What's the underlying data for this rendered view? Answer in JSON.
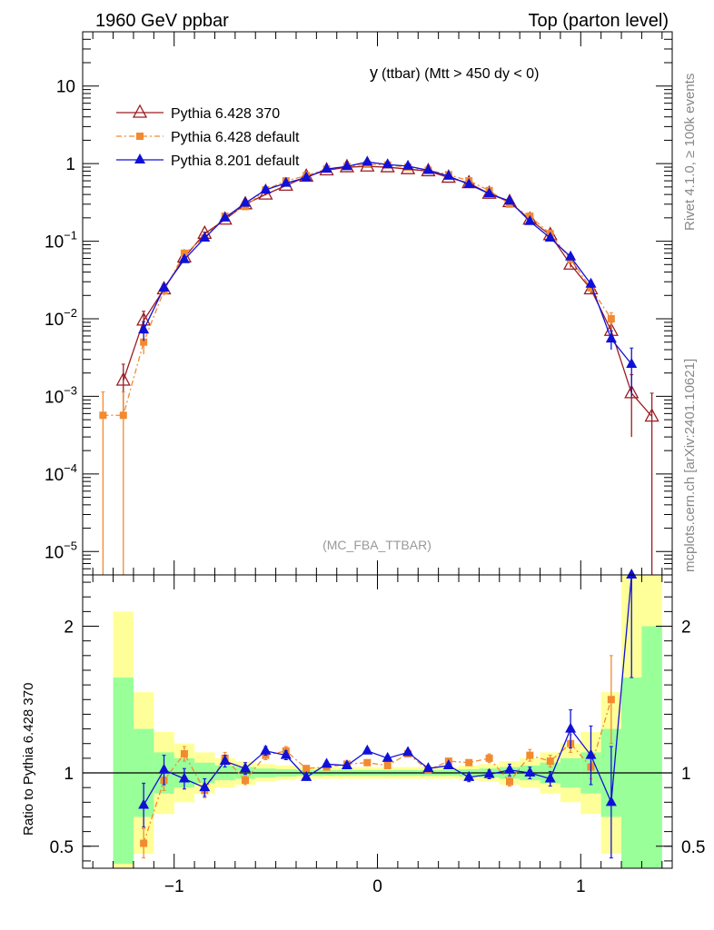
{
  "header": {
    "left": "1960 GeV ppbar",
    "right": "Top (parton level)"
  },
  "side_labels": {
    "rivet": "Rivet 4.1.0, ≥ 100k events",
    "mcplots": "mcplots.cern.ch [arXiv:2401.10621]"
  },
  "chart_data": {
    "type": "line",
    "title_main": "y",
    "title_rest": "(ttbar) (Mtt > 450 dy < 0)",
    "watermark": "(MC_FBA_TTBAR)",
    "xlim": [
      -1.45,
      1.45
    ],
    "ylim": [
      5e-06,
      50
    ],
    "yscale": "log",
    "xticks": [
      {
        "v": -1,
        "label": "−1"
      },
      {
        "v": 0,
        "label": "0"
      },
      {
        "v": 1,
        "label": "1"
      }
    ],
    "yticks": [
      {
        "v": 10,
        "base": "10",
        "exp": ""
      },
      {
        "v": 1,
        "base": "1",
        "exp": ""
      },
      {
        "v": 0.1,
        "base": "10",
        "exp": "−1"
      },
      {
        "v": 0.01,
        "base": "10",
        "exp": "−2"
      },
      {
        "v": 0.001,
        "base": "10",
        "exp": "−3"
      },
      {
        "v": 0.0001,
        "base": "10",
        "exp": "−4"
      },
      {
        "v": 1e-05,
        "base": "10",
        "exp": "−5"
      }
    ],
    "series": [
      {
        "name": "Pythia 6.428 370",
        "color": "#9b1c22",
        "marker": "triangle-open",
        "dash": "",
        "x": [
          -1.25,
          -1.15,
          -1.05,
          -0.95,
          -0.85,
          -0.75,
          -0.65,
          -0.55,
          -0.45,
          -0.35,
          -0.25,
          -0.15,
          -0.05,
          0.05,
          0.15,
          0.25,
          0.35,
          0.45,
          0.55,
          0.65,
          0.75,
          0.85,
          0.95,
          1.05,
          1.15,
          1.25,
          1.35
        ],
        "y": [
          0.0016,
          0.0095,
          0.024,
          0.062,
          0.125,
          0.19,
          0.3,
          0.4,
          0.52,
          0.68,
          0.82,
          0.9,
          0.92,
          0.9,
          0.85,
          0.8,
          0.66,
          0.56,
          0.41,
          0.32,
          0.19,
          0.12,
          0.05,
          0.024,
          0.007,
          0.0011,
          0.00055
        ],
        "err": [
          0.001,
          0.003,
          0.003,
          0.004,
          0.006,
          0.008,
          0.01,
          0.01,
          0.01,
          0.012,
          0.012,
          0.012,
          0.012,
          0.012,
          0.012,
          0.012,
          0.012,
          0.01,
          0.01,
          0.01,
          0.008,
          0.006,
          0.004,
          0.003,
          0.002,
          0.0008,
          0.00055
        ]
      },
      {
        "name": "Pythia 6.428 default",
        "color": "#f28a30",
        "marker": "square",
        "dash": "6,3,2,3",
        "x": [
          -1.35,
          -1.25,
          -1.15,
          -1.05,
          -0.95,
          -0.85,
          -0.75,
          -0.65,
          -0.55,
          -0.45,
          -0.35,
          -0.25,
          -0.15,
          -0.05,
          0.05,
          0.15,
          0.25,
          0.35,
          0.45,
          0.55,
          0.65,
          0.75,
          0.85,
          0.95,
          1.05,
          1.15
        ],
        "y": [
          0.00057,
          0.00057,
          0.005,
          0.023,
          0.07,
          0.11,
          0.21,
          0.28,
          0.46,
          0.6,
          0.7,
          0.85,
          0.92,
          0.98,
          0.96,
          0.9,
          0.82,
          0.72,
          0.6,
          0.45,
          0.3,
          0.21,
          0.125,
          0.058,
          0.025,
          0.01
        ],
        "err": [
          0.00057,
          0.00057,
          0.0015,
          0.003,
          0.004,
          0.006,
          0.008,
          0.01,
          0.01,
          0.01,
          0.012,
          0.012,
          0.012,
          0.012,
          0.012,
          0.012,
          0.012,
          0.012,
          0.01,
          0.01,
          0.01,
          0.008,
          0.006,
          0.004,
          0.003,
          0.002
        ]
      },
      {
        "name": "Pythia 8.201 default",
        "color": "#1010d8",
        "marker": "triangle",
        "dash": "",
        "x": [
          -1.15,
          -1.05,
          -0.95,
          -0.85,
          -0.75,
          -0.65,
          -0.55,
          -0.45,
          -0.35,
          -0.25,
          -0.15,
          -0.05,
          0.05,
          0.15,
          0.25,
          0.35,
          0.45,
          0.55,
          0.65,
          0.75,
          0.85,
          0.95,
          1.05,
          1.15,
          1.25
        ],
        "y": [
          0.0072,
          0.025,
          0.058,
          0.11,
          0.2,
          0.31,
          0.46,
          0.56,
          0.66,
          0.85,
          0.92,
          1.05,
          0.97,
          0.93,
          0.82,
          0.69,
          0.54,
          0.41,
          0.33,
          0.18,
          0.11,
          0.063,
          0.028,
          0.0055,
          0.0026
        ],
        "err": [
          0.002,
          0.003,
          0.004,
          0.006,
          0.008,
          0.01,
          0.01,
          0.01,
          0.012,
          0.012,
          0.012,
          0.012,
          0.012,
          0.012,
          0.012,
          0.012,
          0.01,
          0.01,
          0.01,
          0.008,
          0.006,
          0.004,
          0.003,
          0.0015,
          0.0016
        ]
      }
    ],
    "ratio": {
      "ylabel": "Ratio to Pythia 6.428 370",
      "ylim": [
        0.35,
        2.35
      ],
      "yticks": [
        {
          "v": 0.5,
          "label": "0.5"
        },
        {
          "v": 1,
          "label": "1"
        },
        {
          "v": 2,
          "label": "2"
        }
      ],
      "bands": {
        "x_lo": [
          -1.3,
          -1.2,
          -1.1,
          -1.0,
          -0.9,
          -0.8,
          -0.7,
          -0.6,
          -0.5,
          -0.4,
          -0.3,
          -0.2,
          -0.1,
          0.0,
          0.1,
          0.2,
          0.3,
          0.4,
          0.5,
          0.6,
          0.7,
          0.8,
          0.9,
          1.0,
          1.1,
          1.2,
          1.3
        ],
        "x_hi": [
          -1.2,
          -1.1,
          -1.0,
          -0.9,
          -0.8,
          -0.7,
          -0.6,
          -0.5,
          -0.4,
          -0.3,
          -0.2,
          -0.1,
          0.0,
          0.1,
          0.2,
          0.3,
          0.4,
          0.5,
          0.6,
          0.7,
          0.8,
          0.9,
          1.0,
          1.1,
          1.2,
          1.3,
          1.4
        ],
        "green_lo": [
          0.38,
          0.7,
          0.86,
          0.9,
          0.93,
          0.95,
          0.96,
          0.97,
          0.975,
          0.98,
          0.98,
          0.98,
          0.98,
          0.98,
          0.98,
          0.98,
          0.98,
          0.975,
          0.97,
          0.96,
          0.95,
          0.93,
          0.9,
          0.86,
          0.7,
          0.35,
          0.35
        ],
        "green_hi": [
          1.65,
          1.3,
          1.14,
          1.1,
          1.07,
          1.05,
          1.04,
          1.03,
          1.025,
          1.02,
          1.02,
          1.02,
          1.02,
          1.02,
          1.02,
          1.02,
          1.02,
          1.025,
          1.03,
          1.04,
          1.05,
          1.07,
          1.1,
          1.14,
          1.3,
          1.65,
          2.0
        ],
        "yellow_lo": [
          0.35,
          0.45,
          0.72,
          0.8,
          0.86,
          0.9,
          0.92,
          0.94,
          0.95,
          0.96,
          0.96,
          0.96,
          0.96,
          0.96,
          0.96,
          0.96,
          0.96,
          0.95,
          0.94,
          0.92,
          0.9,
          0.86,
          0.8,
          0.72,
          0.45,
          0.35,
          0.35
        ],
        "yellow_hi": [
          2.1,
          1.55,
          1.28,
          1.2,
          1.14,
          1.1,
          1.08,
          1.06,
          1.05,
          1.04,
          1.04,
          1.04,
          1.04,
          1.04,
          1.04,
          1.04,
          1.04,
          1.05,
          1.06,
          1.08,
          1.1,
          1.14,
          1.2,
          1.28,
          1.55,
          2.35,
          2.35
        ]
      },
      "series": [
        {
          "name": "Pythia 6.428 default",
          "x": [
            -1.15,
            -1.05,
            -0.95,
            -0.85,
            -0.75,
            -0.65,
            -0.55,
            -0.45,
            -0.35,
            -0.25,
            -0.15,
            -0.05,
            0.05,
            0.15,
            0.25,
            0.35,
            0.45,
            0.55,
            0.65,
            0.75,
            0.85,
            0.95,
            1.05,
            1.15
          ],
          "y": [
            0.52,
            0.95,
            1.13,
            0.88,
            1.1,
            0.95,
            1.12,
            1.15,
            1.03,
            1.04,
            1.06,
            1.07,
            1.05,
            1.13,
            1.02,
            1.08,
            1.07,
            1.1,
            0.94,
            1.12,
            1.08,
            1.2,
            1.04,
            1.5
          ],
          "err": [
            0.1,
            0.07,
            0.05,
            0.05,
            0.04,
            0.03,
            0.03,
            0.03,
            0.02,
            0.02,
            0.02,
            0.02,
            0.02,
            0.02,
            0.02,
            0.02,
            0.02,
            0.03,
            0.03,
            0.04,
            0.04,
            0.06,
            0.08,
            0.3
          ]
        },
        {
          "name": "Pythia 8.201 default",
          "x": [
            -1.15,
            -1.05,
            -0.95,
            -0.85,
            -0.75,
            -0.65,
            -0.55,
            -0.45,
            -0.35,
            -0.25,
            -0.15,
            -0.05,
            0.05,
            0.15,
            0.25,
            0.35,
            0.45,
            0.55,
            0.65,
            0.75,
            0.85,
            0.95,
            1.05,
            1.15,
            1.25
          ],
          "y": [
            0.78,
            1.02,
            0.96,
            0.9,
            1.08,
            1.03,
            1.15,
            1.12,
            0.97,
            1.06,
            1.05,
            1.15,
            1.1,
            1.14,
            1.03,
            1.05,
            0.97,
            0.99,
            1.02,
            1.0,
            0.96,
            1.3,
            1.12,
            0.8,
            2.35
          ],
          "err": [
            0.15,
            0.1,
            0.07,
            0.06,
            0.04,
            0.04,
            0.03,
            0.03,
            0.02,
            0.02,
            0.02,
            0.02,
            0.02,
            0.02,
            0.02,
            0.02,
            0.03,
            0.03,
            0.04,
            0.04,
            0.05,
            0.13,
            0.2,
            0.38,
            0.7
          ]
        }
      ]
    }
  }
}
